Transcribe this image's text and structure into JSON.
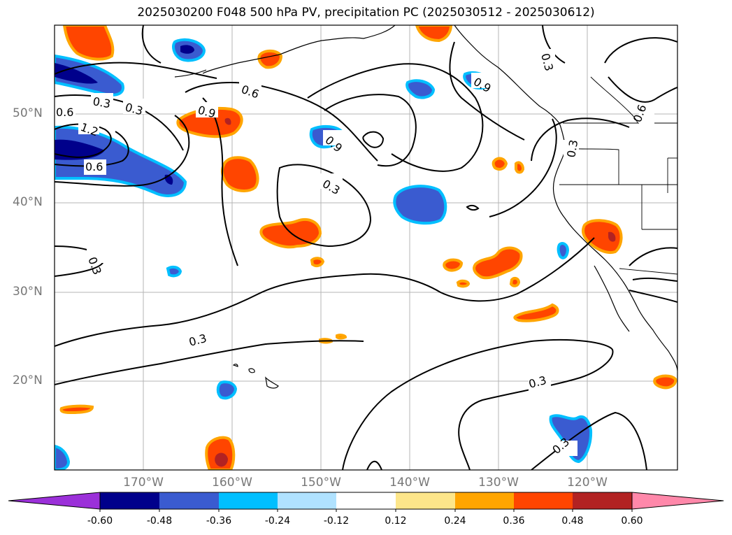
{
  "title": "2025030200 F048 500 hPa PV, precipitation PC (2025030512 - 2025030612)",
  "latitude_labels": [
    "50°N",
    "40°N",
    "30°N",
    "20°N"
  ],
  "longitude_labels": [
    "170°W",
    "160°W",
    "150°W",
    "140°W",
    "130°W",
    "120°W"
  ],
  "contour_labels": [
    "0.3",
    "0.6",
    "0.9",
    "1.2",
    "0.3",
    "0.3",
    "0.6",
    "0.9",
    "0.3",
    "0.3",
    "0.3",
    "0.3",
    "0.6",
    "0.3",
    "0.6",
    "0.9",
    "0.3"
  ],
  "colorbar": {
    "ticks": [
      "-0.60",
      "-0.48",
      "-0.36",
      "-0.24",
      "-0.12",
      "0.12",
      "0.24",
      "0.36",
      "0.48",
      "0.60"
    ],
    "colors": [
      "#9b30d9",
      "#00008b",
      "#3a5bd0",
      "#00bfff",
      "#b0e2ff",
      "#ffffff",
      "#fde68a",
      "#ffa500",
      "#ff4500",
      "#b22222",
      "#ff88aa"
    ]
  },
  "field_colors": {
    "positive_strong": "#ff4500",
    "positive_edge": "#ffa500",
    "positive_light": "#fde68a",
    "positive_max": "#b22222",
    "negative_strong": "#3a5bd0",
    "negative_edge": "#00bfff",
    "negative_max": "#00008b"
  }
}
